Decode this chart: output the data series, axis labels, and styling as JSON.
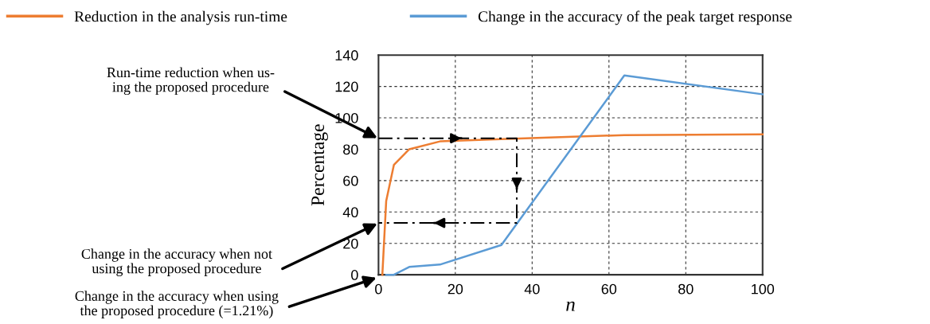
{
  "chart_data": {
    "type": "line",
    "xlabel": "n",
    "ylabel": "Percentage",
    "xlim": [
      0,
      100
    ],
    "xticks": [
      0,
      20,
      40,
      60,
      80,
      100
    ],
    "ylim": [
      0,
      140
    ],
    "yticks": [
      0,
      20,
      40,
      60,
      80,
      100,
      120,
      140
    ],
    "grid": true,
    "legend": "top",
    "marker": "none",
    "series": [
      {
        "name": "Reduction in the analysis run-time",
        "color": "#ed7d31",
        "x": [
          1,
          2,
          4,
          8,
          16,
          32,
          64,
          100
        ],
        "values": [
          0,
          47,
          70,
          80,
          85,
          86.5,
          89,
          89.5
        ]
      },
      {
        "name": "Change in the accuracy of the peak target response",
        "color": "#5b9bd5",
        "x": [
          2,
          4,
          8,
          16,
          32,
          64,
          100
        ],
        "values": [
          0,
          0,
          5,
          6.5,
          19,
          127,
          115
        ]
      },
      {
        "color": "#000000",
        "line_style": "dashed",
        "x": [
          0,
          36,
          36,
          0
        ],
        "values": [
          87,
          87,
          33,
          33
        ]
      }
    ],
    "annotations": [
      "Run-time reduction when us-\ning the proposed procedure",
      "Change in the accuracy when not\nusing the proposed procedure",
      "Change in the accuracy when using\nthe proposed procedure (=1.21%)"
    ]
  }
}
